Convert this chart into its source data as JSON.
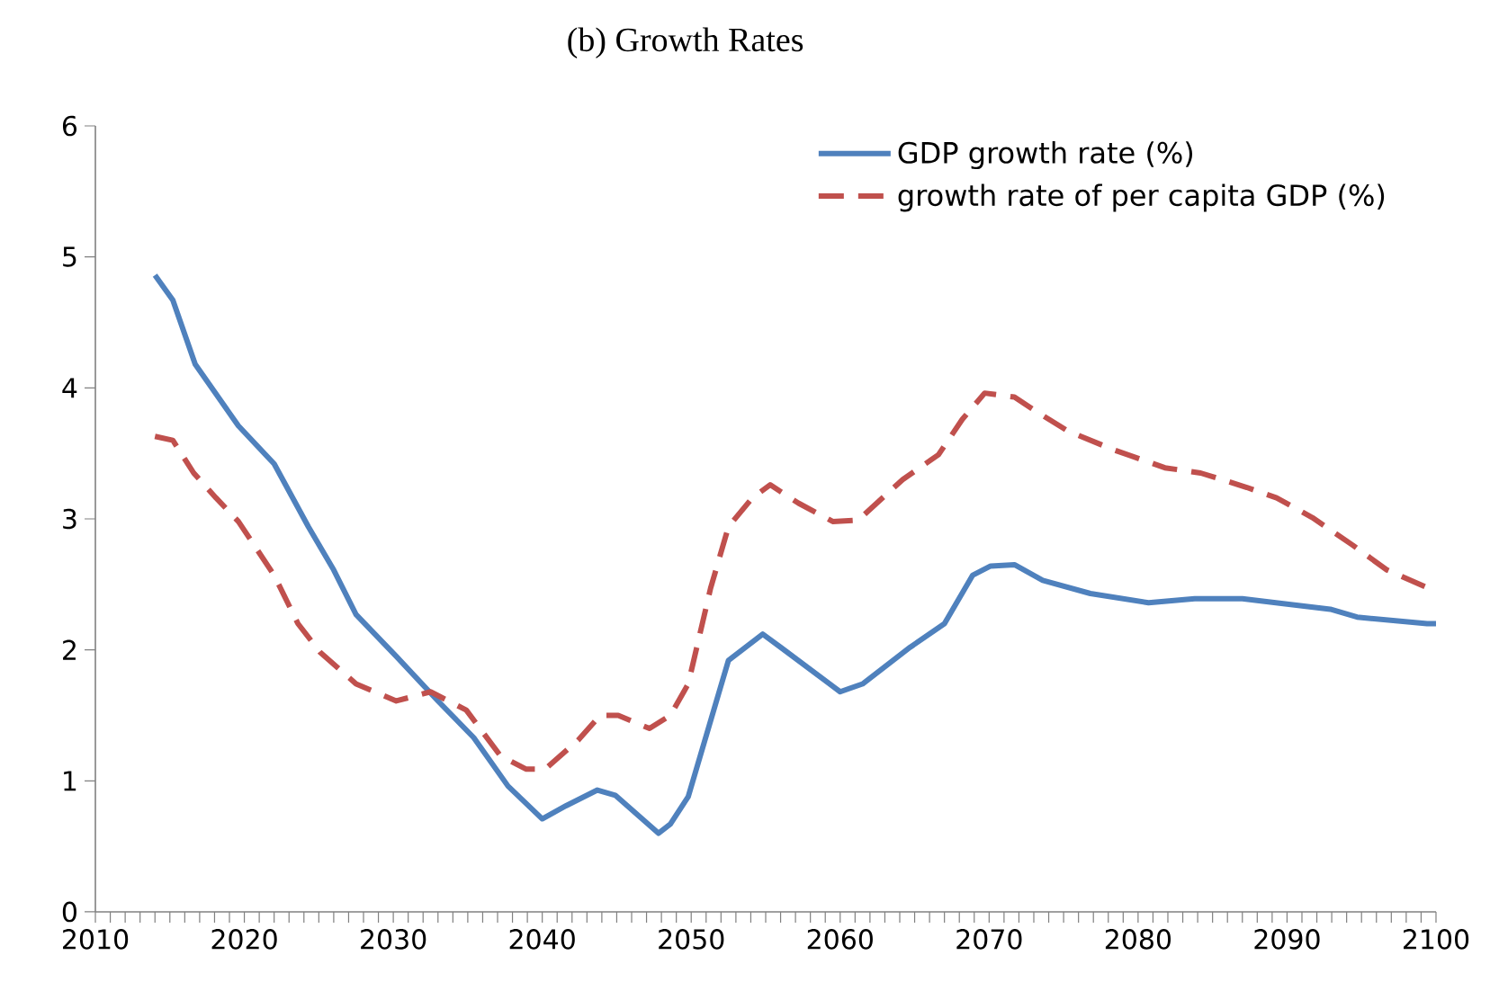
{
  "chart_data": {
    "type": "line",
    "title": "(b) Growth Rates",
    "xlim": [
      2010,
      2100
    ],
    "xticks": [
      2010,
      2020,
      2030,
      2040,
      2050,
      2060,
      2070,
      2080,
      2090,
      2100
    ],
    "ylim": [
      0,
      6
    ],
    "yticks": [
      0,
      1,
      2,
      3,
      4,
      5,
      6
    ],
    "grid": false,
    "legend": "top right",
    "marker": "none",
    "series": [
      {
        "name": "GDP growth rate (%)",
        "color": "#4f81bd",
        "line_style": "solid",
        "x": [
          2014,
          2015.2,
          2016.7,
          2019.6,
          2022,
          2024.3,
          2026,
          2027.5,
          2030.2,
          2033,
          2035.4,
          2037.7,
          2040,
          2041.6,
          2043.7,
          2044.9,
          2047.8,
          2048.6,
          2049.8,
          2052.5,
          2054.8,
          2056,
          2060,
          2061.5,
          2064.7,
          2067,
          2068.9,
          2070.1,
          2071.7,
          2073.6,
          2076.8,
          2080.7,
          2083.8,
          2087,
          2090,
          2092.9,
          2094.7,
          2099.4,
          2100
        ],
        "values": [
          4.86,
          4.67,
          4.18,
          3.71,
          3.42,
          2.94,
          2.61,
          2.27,
          1.95,
          1.61,
          1.33,
          0.96,
          0.71,
          0.81,
          0.93,
          0.89,
          0.6,
          0.67,
          0.88,
          1.92,
          2.12,
          2.02,
          1.68,
          1.74,
          2.02,
          2.2,
          2.57,
          2.64,
          2.65,
          2.53,
          2.43,
          2.36,
          2.39,
          2.39,
          2.35,
          2.31,
          2.25,
          2.2,
          2.2
        ]
      },
      {
        "name": "growth rate of per capita GDP (%)",
        "color": "#c0504d",
        "line_style": "dashed",
        "x": [
          2014,
          2015.2,
          2016.6,
          2018.1,
          2019.6,
          2022,
          2023.6,
          2025.1,
          2027.5,
          2030.2,
          2032.5,
          2034.9,
          2037.2,
          2038.9,
          2040.2,
          2042.4,
          2043.9,
          2045.1,
          2047.2,
          2048.6,
          2049.8,
          2051.3,
          2052.5,
          2054.1,
          2055.3,
          2057.2,
          2059.5,
          2061.2,
          2064.2,
          2066.6,
          2068.2,
          2069.7,
          2071.7,
          2073.3,
          2075.3,
          2078.3,
          2081.8,
          2084.2,
          2087.3,
          2089.3,
          2091.7,
          2094.4,
          2096.7,
          2099.7,
          2100
        ],
        "values": [
          3.63,
          3.6,
          3.35,
          3.16,
          2.98,
          2.57,
          2.2,
          1.98,
          1.74,
          1.61,
          1.68,
          1.54,
          1.19,
          1.09,
          1.09,
          1.31,
          1.5,
          1.5,
          1.4,
          1.5,
          1.74,
          2.47,
          2.94,
          3.16,
          3.26,
          3.12,
          2.98,
          2.99,
          3.3,
          3.49,
          3.76,
          3.96,
          3.93,
          3.81,
          3.67,
          3.53,
          3.39,
          3.35,
          3.24,
          3.16,
          3.01,
          2.8,
          2.61,
          2.46,
          2.45
        ]
      }
    ]
  }
}
